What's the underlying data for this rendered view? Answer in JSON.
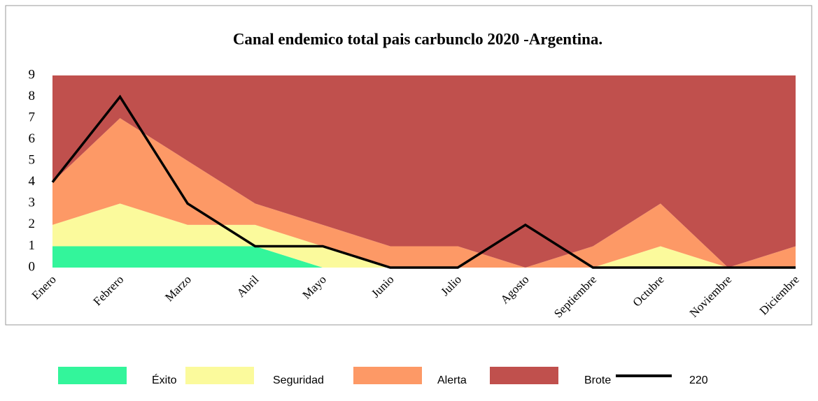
{
  "chart_data": {
    "type": "area",
    "stacked": true,
    "title": "Canal endemico total pais carbunclo 2020 -Argentina.",
    "categories": [
      "Enero",
      "Febrero",
      "Marzo",
      "Abril",
      "Mayo",
      "Junio",
      "Julio",
      "Agosto",
      "Septiembre",
      "Octubre",
      "Noviembre",
      "Diciembre"
    ],
    "series": [
      {
        "name": "Éxito",
        "color": "#33f59b",
        "values": [
          1,
          1,
          1,
          1,
          0,
          0,
          0,
          0,
          0,
          0,
          0,
          0
        ]
      },
      {
        "name": "Seguridad",
        "color": "#fbfa9c",
        "values": [
          1,
          2,
          1,
          1,
          1,
          0,
          0,
          0,
          0,
          1,
          0,
          0
        ]
      },
      {
        "name": "Alerta",
        "color": "#fd9966",
        "values": [
          2,
          4,
          3,
          1,
          1,
          1,
          1,
          0,
          1,
          2,
          0,
          1
        ]
      },
      {
        "name": "Brote",
        "color": "#c0504d",
        "values": [
          5,
          2,
          4,
          6,
          7,
          8,
          8,
          9,
          8,
          6,
          9,
          8
        ]
      },
      {
        "name": "220",
        "type": "line",
        "color": "#000000",
        "values": [
          4,
          8,
          3,
          1,
          1,
          0,
          0,
          2,
          0,
          0,
          0,
          0
        ]
      }
    ],
    "ylim": [
      0,
      9
    ],
    "yticks": [
      0,
      1,
      2,
      3,
      4,
      5,
      6,
      7,
      8,
      9
    ],
    "legend": "bottom"
  }
}
